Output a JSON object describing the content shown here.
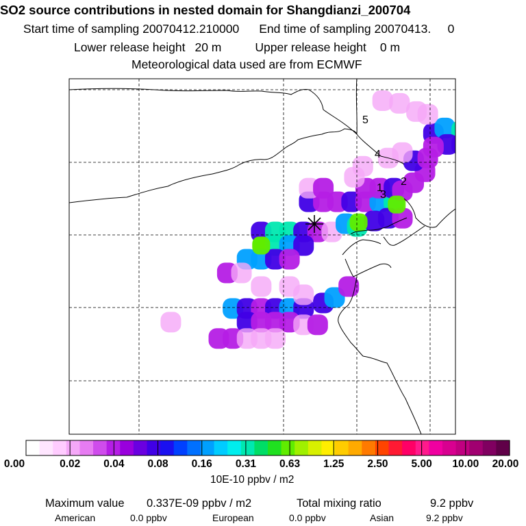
{
  "header": {
    "title": "SO2 source contributions in nested domain for Shangdianzi_200704",
    "start_label": "Start time of sampling",
    "start_value": "20070412.210000",
    "end_label": "End time of sampling",
    "end_value": "20070413.     0",
    "lower_label": "Lower release height",
    "lower_value": "20 m",
    "upper_label": "Upper release height",
    "upper_value": "0 m",
    "met_note": "Meteorological data used are from ECMWF"
  },
  "chart_data": {
    "type": "heatmap",
    "title": "SO2 source contributions in nested domain for Shangdianzi_200704",
    "grid": true,
    "receptor": "star-marker",
    "site_labels": [
      "1",
      "2",
      "3",
      "4",
      "5"
    ],
    "colorbar": {
      "tick_labels": [
        "0.00",
        "0.02",
        "0.04",
        "0.08",
        "0.16",
        "0.31",
        "0.63",
        "1.25",
        "2.50",
        "5.00",
        "10.00",
        "20.00"
      ],
      "tick_values": [
        0.0,
        0.02,
        0.04,
        0.08,
        0.16,
        0.31,
        0.63,
        1.25,
        2.5,
        5.0,
        10.0,
        20.0
      ],
      "unit": "10E-10 ppbv / m2",
      "colors": [
        "#ffffff",
        "#ffe6ff",
        "#ffccff",
        "#f5a8f8",
        "#e77cf2",
        "#cf4cec",
        "#b51ee5",
        "#9900dd",
        "#6a00e0",
        "#4000e6",
        "#1a10f0",
        "#0040ff",
        "#0070ff",
        "#00a0ff",
        "#00ccff",
        "#00eeee",
        "#00e8b0",
        "#00dd66",
        "#20e020",
        "#60ec00",
        "#a0f000",
        "#d8f000",
        "#ffee00",
        "#ffcc00",
        "#ffaa00",
        "#ff7a00",
        "#ff4400",
        "#ff1a33",
        "#ff0066",
        "#ff1a8c",
        "#f000a0",
        "#d80090",
        "#c00080",
        "#a00070",
        "#800060",
        "#600048"
      ]
    },
    "plumes": [
      {
        "cells": [
          [
            6.8,
            5.6,
            0.08
          ],
          [
            7.3,
            5.6,
            0.31
          ],
          [
            7.8,
            5.6,
            0.31
          ],
          [
            8.3,
            5.6,
            0.08
          ],
          [
            8.8,
            5.6,
            0.04
          ],
          [
            9.3,
            5.6,
            0.02
          ],
          [
            6.8,
            6.1,
            0.63
          ],
          [
            7.3,
            6.1,
            0.31
          ],
          [
            7.8,
            6.1,
            0.16
          ],
          [
            8.3,
            6.1,
            0.08
          ],
          [
            6.3,
            6.6,
            0.16
          ],
          [
            6.8,
            6.6,
            0.16
          ],
          [
            7.3,
            6.6,
            0.08
          ],
          [
            7.8,
            6.6,
            0.04
          ],
          [
            5.6,
            7.1,
            0.04
          ],
          [
            6.1,
            7.1,
            0.02
          ],
          [
            5.8,
            8.4,
            0.16
          ],
          [
            6.3,
            8.4,
            0.08
          ],
          [
            6.8,
            8.4,
            0.04
          ],
          [
            7.3,
            8.4,
            0.08
          ],
          [
            7.8,
            8.4,
            0.16
          ],
          [
            8.3,
            8.4,
            0.08
          ],
          [
            6.3,
            8.9,
            0.08
          ],
          [
            6.8,
            8.9,
            0.04
          ],
          [
            7.3,
            8.9,
            0.04
          ],
          [
            7.8,
            8.9,
            0.04
          ],
          [
            5.3,
            9.5,
            0.04
          ],
          [
            5.8,
            9.5,
            0.04
          ],
          [
            6.3,
            9.5,
            0.02
          ],
          [
            6.8,
            9.5,
            0.02
          ],
          [
            7.3,
            9.5,
            0.02
          ],
          [
            8.3,
            9.0,
            0.02
          ],
          [
            8.8,
            9.0,
            0.04
          ],
          [
            9.0,
            8.2,
            0.08
          ],
          [
            9.4,
            8.0,
            0.16
          ],
          [
            9.9,
            7.6,
            0.04
          ],
          [
            8.3,
            7.9,
            0.02
          ],
          [
            7.8,
            7.6,
            0.02
          ],
          [
            6.8,
            7.6,
            0.02
          ]
        ]
      },
      {
        "cells": [
          [
            8.5,
            4.5,
            0.08
          ],
          [
            9.0,
            4.5,
            0.04
          ],
          [
            9.5,
            4.5,
            0.04
          ],
          [
            10.0,
            4.5,
            0.08
          ],
          [
            10.5,
            4.5,
            0.04
          ],
          [
            11.0,
            4.5,
            0.16
          ],
          [
            11.5,
            4.5,
            0.31
          ],
          [
            8.5,
            4.0,
            0.02
          ],
          [
            9.0,
            4.0,
            0.04
          ],
          [
            10.5,
            4.0,
            0.04
          ],
          [
            11.0,
            4.0,
            0.04
          ],
          [
            11.5,
            4.0,
            0.08
          ],
          [
            9.8,
            5.3,
            0.16
          ],
          [
            10.2,
            5.4,
            0.31
          ],
          [
            10.8,
            5.2,
            0.08
          ],
          [
            11.3,
            5.1,
            0.08
          ],
          [
            11.8,
            5.1,
            0.04
          ],
          [
            11.8,
            4.1,
            0.04
          ],
          [
            12.2,
            3.8,
            0.04
          ],
          [
            12.6,
            3.4,
            0.04
          ],
          [
            12.2,
            3.0,
            0.08
          ],
          [
            12.7,
            2.9,
            0.04
          ],
          [
            11.8,
            2.7,
            0.02
          ],
          [
            11.3,
            2.9,
            0.02
          ],
          [
            12.9,
            2.0,
            0.08
          ],
          [
            13.3,
            1.8,
            0.16
          ],
          [
            13.9,
            1.9,
            0.31
          ],
          [
            13.9,
            2.4,
            0.08
          ],
          [
            13.4,
            2.4,
            0.08
          ],
          [
            12.9,
            2.5,
            0.04
          ],
          [
            10.1,
            3.6,
            0.02
          ],
          [
            10.4,
            3.2,
            0.02
          ],
          [
            12.3,
            1.2,
            0.02
          ],
          [
            11.7,
            0.9,
            0.02
          ],
          [
            11.1,
            0.8,
            0.02
          ],
          [
            12.7,
            1.3,
            0.02
          ]
        ]
      },
      {
        "cells": [
          [
            10.25,
            5.25,
            0.63
          ],
          [
            11.6,
            4.6,
            0.63
          ],
          [
            14.0,
            2.0,
            1.25
          ],
          [
            6.8,
            6.1,
            0.63
          ],
          [
            3.6,
            8.9,
            0.02
          ]
        ]
      }
    ]
  },
  "footer": {
    "max_label": "Maximum value",
    "max_value": "0.337E-09 ppbv / m2",
    "total_label": "Total mixing ratio",
    "total_value": "9.2 ppbv",
    "american_label": "American",
    "american_value": "0.0 ppbv",
    "european_label": "European",
    "european_value": "0.0 ppbv",
    "asian_label": "Asian",
    "asian_value": "9.2 ppbv"
  }
}
